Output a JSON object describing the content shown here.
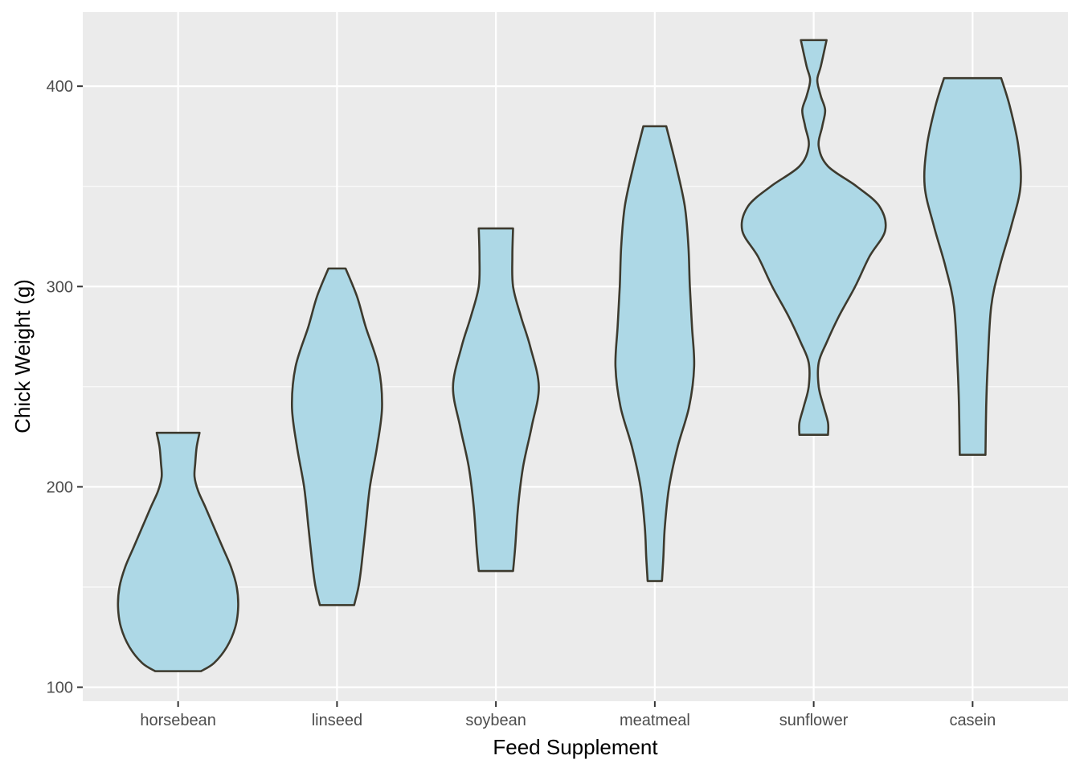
{
  "chart_data": {
    "type": "violin",
    "title": "",
    "xlabel": "Feed Supplement",
    "ylabel": "Chick Weight (g)",
    "ylim": [
      93,
      437
    ],
    "yticks": [
      100,
      200,
      300,
      400
    ],
    "grid": true,
    "legend": "none",
    "colors": {
      "panel": "#ebebeb",
      "grid": "#ffffff",
      "fill": "#add8e6",
      "outline": "#3d3a2e",
      "tick_text": "#4d4d4d"
    },
    "categories": [
      "horsebean",
      "linseed",
      "soybean",
      "meatmeal",
      "sunflower",
      "casein"
    ],
    "series": [
      {
        "category": "horsebean",
        "min": 108,
        "max": 227,
        "density": [
          [
            108,
            0.32
          ],
          [
            112,
            0.5
          ],
          [
            120,
            0.68
          ],
          [
            130,
            0.8
          ],
          [
            140,
            0.84
          ],
          [
            150,
            0.82
          ],
          [
            160,
            0.74
          ],
          [
            170,
            0.62
          ],
          [
            180,
            0.5
          ],
          [
            190,
            0.38
          ],
          [
            198,
            0.28
          ],
          [
            205,
            0.23
          ],
          [
            212,
            0.24
          ],
          [
            220,
            0.26
          ],
          [
            227,
            0.3
          ]
        ]
      },
      {
        "category": "linseed",
        "min": 141,
        "max": 309,
        "density": [
          [
            141,
            0.24
          ],
          [
            150,
            0.3
          ],
          [
            160,
            0.34
          ],
          [
            180,
            0.4
          ],
          [
            200,
            0.46
          ],
          [
            220,
            0.56
          ],
          [
            240,
            0.63
          ],
          [
            260,
            0.58
          ],
          [
            280,
            0.4
          ],
          [
            295,
            0.28
          ],
          [
            309,
            0.12
          ]
        ]
      },
      {
        "category": "soybean",
        "min": 158,
        "max": 329,
        "density": [
          [
            158,
            0.24
          ],
          [
            170,
            0.27
          ],
          [
            190,
            0.31
          ],
          [
            210,
            0.38
          ],
          [
            230,
            0.5
          ],
          [
            250,
            0.6
          ],
          [
            270,
            0.48
          ],
          [
            285,
            0.35
          ],
          [
            300,
            0.24
          ],
          [
            315,
            0.23
          ],
          [
            329,
            0.24
          ]
        ]
      },
      {
        "category": "meatmeal",
        "min": 153,
        "max": 380,
        "density": [
          [
            153,
            0.1
          ],
          [
            165,
            0.12
          ],
          [
            180,
            0.14
          ],
          [
            200,
            0.2
          ],
          [
            220,
            0.32
          ],
          [
            240,
            0.48
          ],
          [
            260,
            0.55
          ],
          [
            280,
            0.52
          ],
          [
            300,
            0.49
          ],
          [
            320,
            0.47
          ],
          [
            340,
            0.42
          ],
          [
            360,
            0.3
          ],
          [
            380,
            0.16
          ]
        ]
      },
      {
        "category": "sunflower",
        "min": 226,
        "max": 423,
        "density": [
          [
            226,
            0.2
          ],
          [
            232,
            0.2
          ],
          [
            240,
            0.14
          ],
          [
            250,
            0.07
          ],
          [
            262,
            0.07
          ],
          [
            272,
            0.18
          ],
          [
            285,
            0.35
          ],
          [
            300,
            0.58
          ],
          [
            315,
            0.78
          ],
          [
            328,
            1.0
          ],
          [
            340,
            0.92
          ],
          [
            350,
            0.6
          ],
          [
            360,
            0.2
          ],
          [
            370,
            0.07
          ],
          [
            380,
            0.12
          ],
          [
            388,
            0.16
          ],
          [
            395,
            0.1
          ],
          [
            403,
            0.05
          ],
          [
            410,
            0.1
          ],
          [
            423,
            0.18
          ]
        ]
      },
      {
        "category": "casein",
        "min": 216,
        "max": 404,
        "density": [
          [
            216,
            0.18
          ],
          [
            240,
            0.19
          ],
          [
            260,
            0.21
          ],
          [
            290,
            0.26
          ],
          [
            310,
            0.38
          ],
          [
            330,
            0.54
          ],
          [
            350,
            0.67
          ],
          [
            370,
            0.64
          ],
          [
            390,
            0.52
          ],
          [
            404,
            0.4
          ]
        ]
      }
    ]
  }
}
